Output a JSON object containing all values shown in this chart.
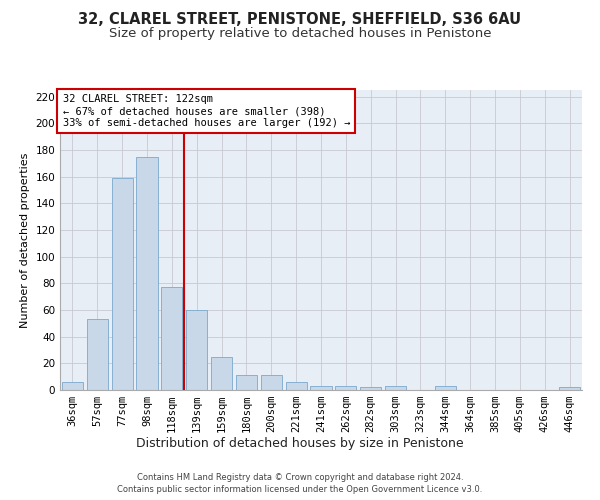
{
  "title": "32, CLAREL STREET, PENISTONE, SHEFFIELD, S36 6AU",
  "subtitle": "Size of property relative to detached houses in Penistone",
  "xlabel": "Distribution of detached houses by size in Penistone",
  "ylabel": "Number of detached properties",
  "footer1": "Contains HM Land Registry data © Crown copyright and database right 2024.",
  "footer2": "Contains public sector information licensed under the Open Government Licence v3.0.",
  "categories": [
    "36sqm",
    "57sqm",
    "77sqm",
    "98sqm",
    "118sqm",
    "139sqm",
    "159sqm",
    "180sqm",
    "200sqm",
    "221sqm",
    "241sqm",
    "262sqm",
    "282sqm",
    "303sqm",
    "323sqm",
    "344sqm",
    "364sqm",
    "385sqm",
    "405sqm",
    "426sqm",
    "446sqm"
  ],
  "values": [
    6,
    53,
    159,
    175,
    77,
    60,
    25,
    11,
    11,
    6,
    3,
    3,
    2,
    3,
    0,
    3,
    0,
    0,
    0,
    0,
    2
  ],
  "bar_color": "#c8d8e8",
  "bar_edge_color": "#7aa8cc",
  "grid_color": "#c8c8d0",
  "bg_color": "#e8eef6",
  "vline_color": "#cc0000",
  "annotation_line1": "32 CLAREL STREET: 122sqm",
  "annotation_line2": "← 67% of detached houses are smaller (398)",
  "annotation_line3": "33% of semi-detached houses are larger (192) →",
  "annotation_box_color": "#cc0000",
  "ylim": [
    0,
    225
  ],
  "yticks": [
    0,
    20,
    40,
    60,
    80,
    100,
    120,
    140,
    160,
    180,
    200,
    220
  ],
  "title_fontsize": 10.5,
  "subtitle_fontsize": 9.5,
  "xlabel_fontsize": 9,
  "ylabel_fontsize": 8,
  "tick_fontsize": 7.5,
  "footer_fontsize": 6
}
